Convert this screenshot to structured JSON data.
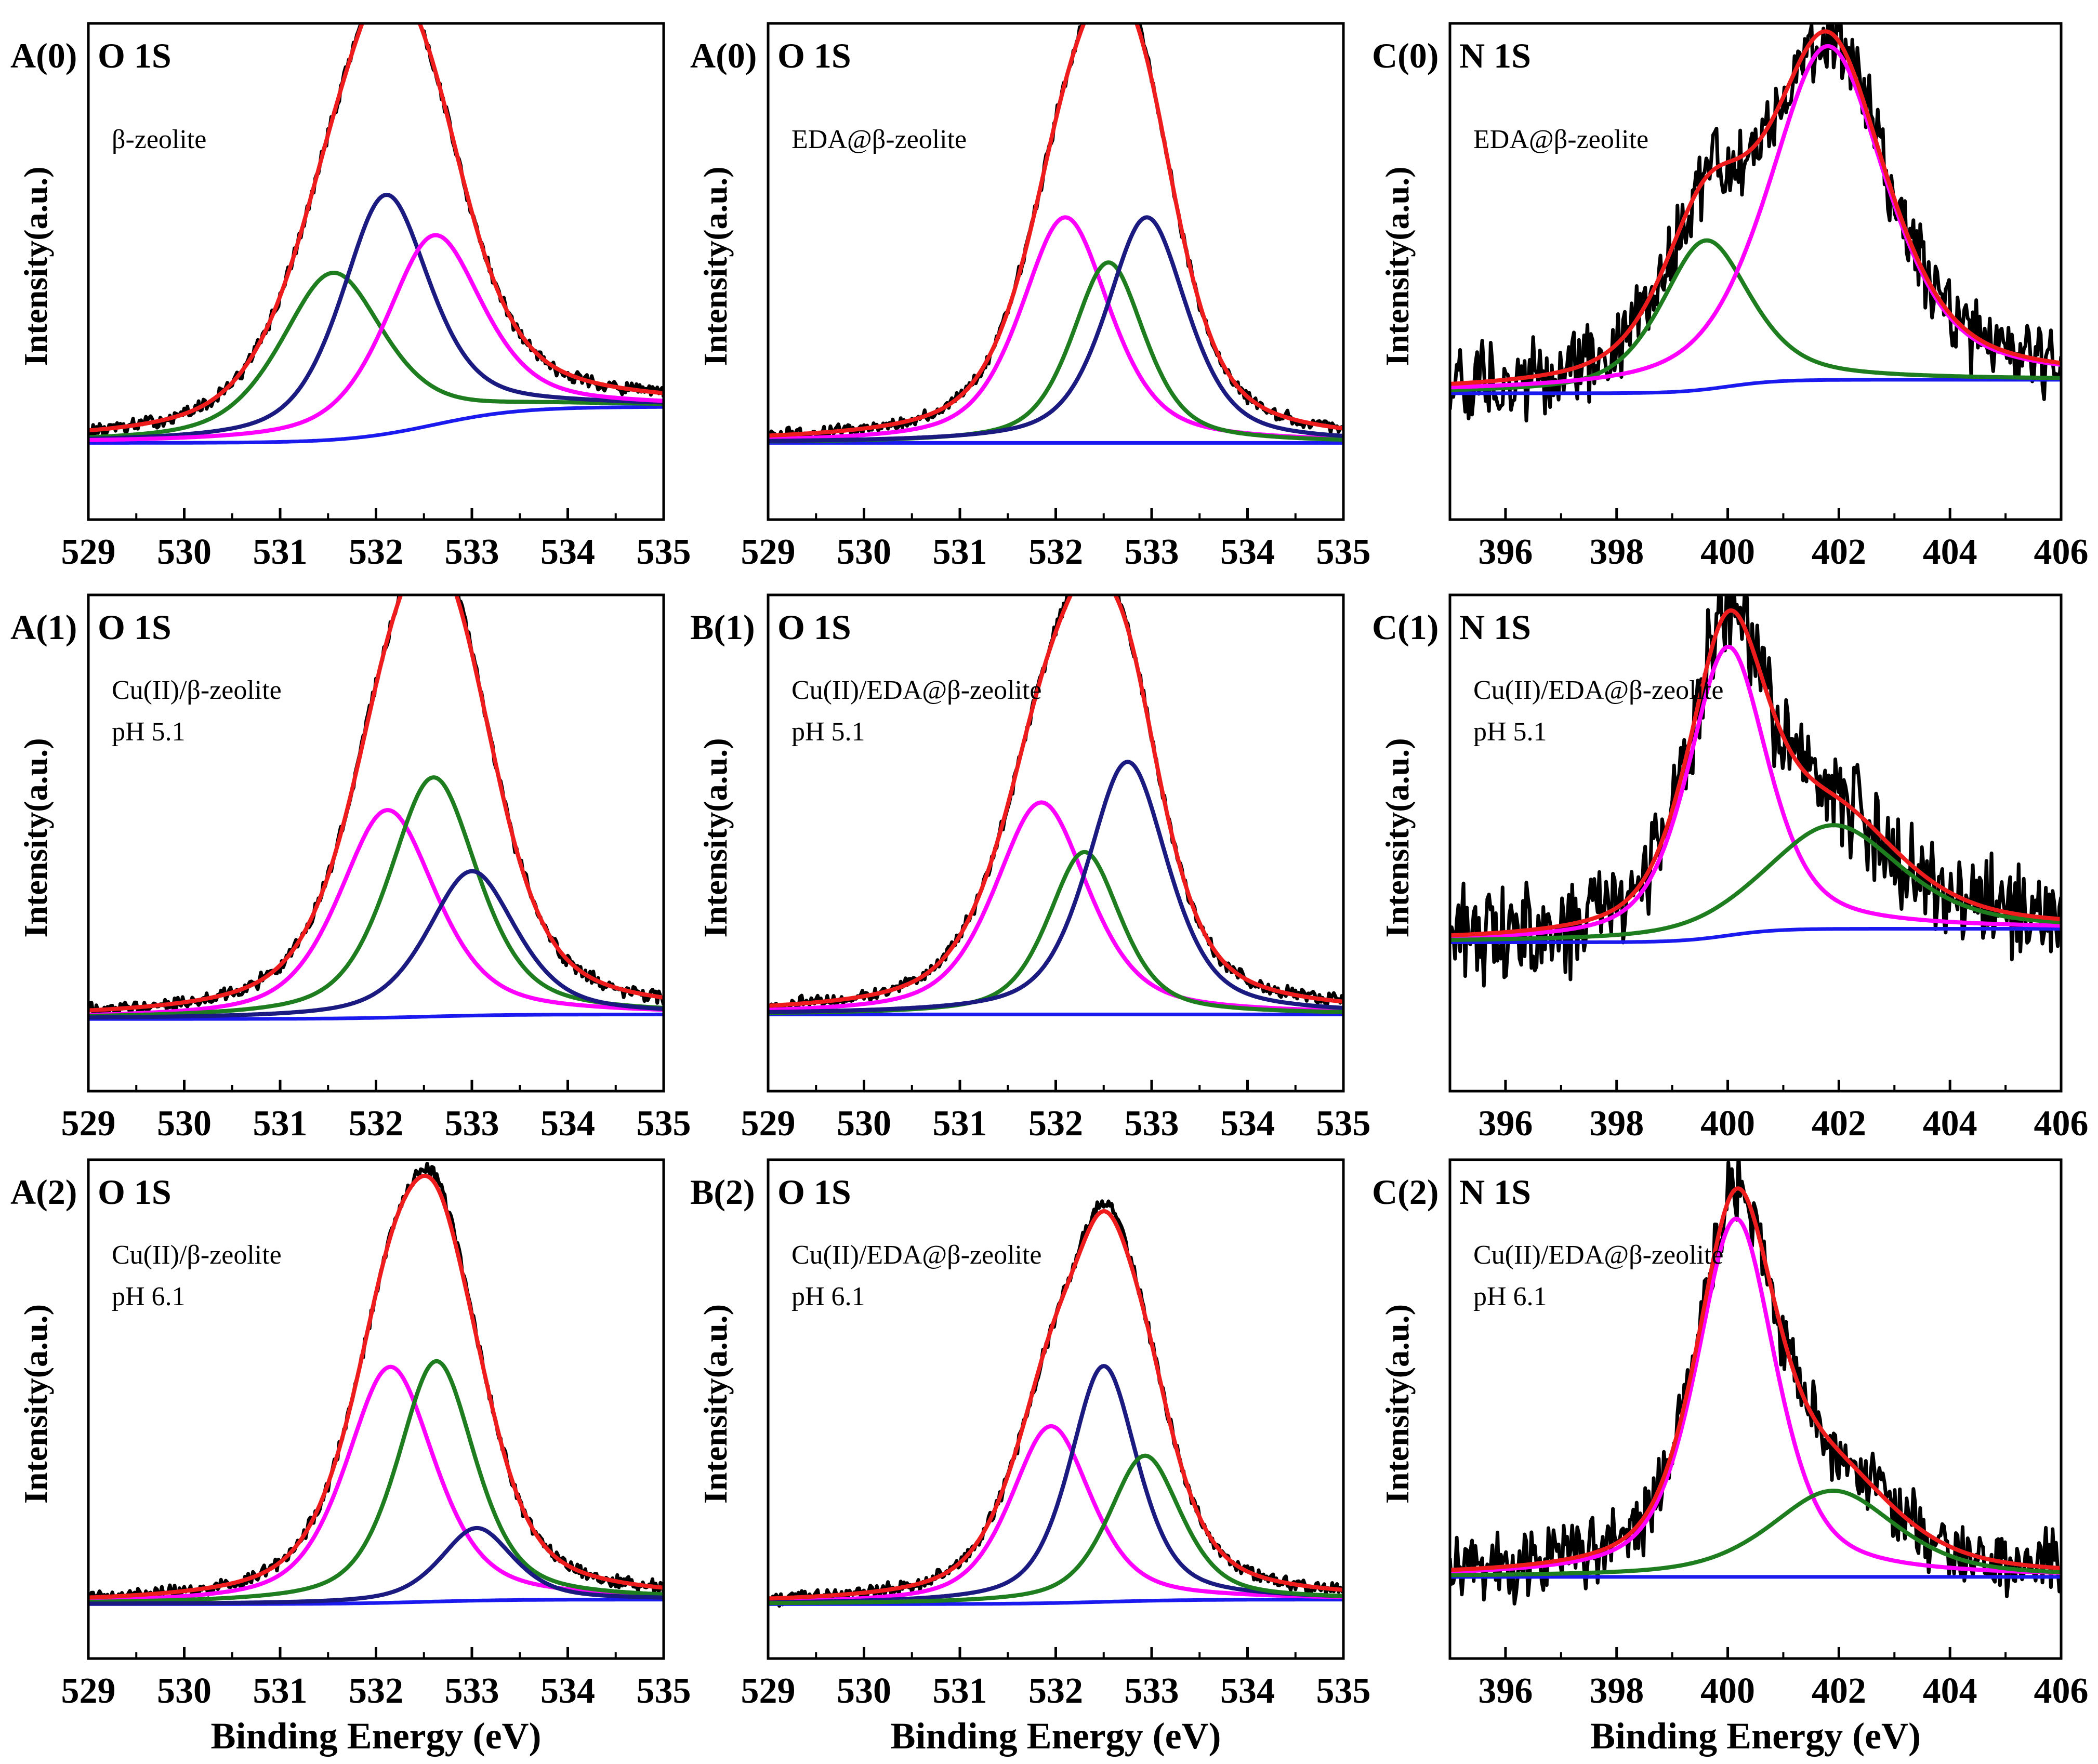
{
  "figure": {
    "xlabel": "Binding Energy (eV)",
    "ylabel": "Intensity(a.u.)",
    "colors": {
      "raw": "#000000",
      "fit": "#ee1c1c",
      "baseline": "#1a1aee",
      "navy": "#1a1a80",
      "magenta": "#ff00ff",
      "green": "#1e7d1e"
    }
  },
  "chart_data": [
    {
      "id": "p00",
      "type": "line",
      "panel_label": "A(0)",
      "title": "O 1S",
      "sample": [
        "β-zeolite"
      ],
      "xlim": [
        529,
        535
      ],
      "ylim": [
        0,
        1.1
      ],
      "xticks": [
        "529",
        "530",
        "531",
        "532",
        "533",
        "534",
        "535"
      ],
      "noise": 0.012,
      "baseline": {
        "start": 0.17,
        "end": 0.25,
        "step_center": 532.6
      },
      "components": [
        {
          "name": "peak 531.5",
          "color": "green",
          "center": 531.55,
          "height": 0.37,
          "width": 0.65
        },
        {
          "name": "peak 532.1",
          "color": "navy",
          "center": 532.1,
          "height": 0.53,
          "width": 0.55
        },
        {
          "name": "peak 532.6",
          "color": "magenta",
          "center": 532.6,
          "height": 0.42,
          "width": 0.6
        }
      ]
    },
    {
      "id": "p01",
      "type": "line",
      "panel_label": "A(0)",
      "title": "O 1S",
      "sample": [
        "EDA@β-zeolite"
      ],
      "xlim": [
        529,
        535
      ],
      "ylim": [
        0,
        1.1
      ],
      "xticks": [
        "529",
        "530",
        "531",
        "532",
        "533",
        "534",
        "535"
      ],
      "noise": 0.012,
      "baseline": {
        "start": 0.17,
        "end": 0.17,
        "step_center": 532.5
      },
      "components": [
        {
          "name": "peak 532.1",
          "color": "magenta",
          "center": 532.1,
          "height": 0.5,
          "width": 0.55
        },
        {
          "name": "peak 532.6",
          "color": "green",
          "center": 532.55,
          "height": 0.4,
          "width": 0.45
        },
        {
          "name": "peak 533.0",
          "color": "navy",
          "center": 532.95,
          "height": 0.5,
          "width": 0.5
        }
      ]
    },
    {
      "id": "p02",
      "type": "line",
      "panel_label": "C(0)",
      "title": "N 1S",
      "sample": [
        "EDA@β-zeolite"
      ],
      "xlim": [
        395,
        406
      ],
      "ylim": [
        0,
        1.1
      ],
      "xticks": [
        "396",
        "398",
        "400",
        "402",
        "404",
        "406"
      ],
      "noise": 0.07,
      "baseline": {
        "start": 0.28,
        "end": 0.31,
        "step_center": 400
      },
      "components": [
        {
          "name": "peak 399.6",
          "color": "green",
          "center": 399.6,
          "height": 0.33,
          "width": 0.95
        },
        {
          "name": "peak 401.8",
          "color": "magenta",
          "center": 401.8,
          "height": 0.74,
          "width": 1.25
        }
      ]
    },
    {
      "id": "p10",
      "type": "line",
      "panel_label": "A(1)",
      "title": "O 1S",
      "sample": [
        "Cu(II)/β-zeolite",
        "pH 5.1"
      ],
      "xlim": [
        529,
        535
      ],
      "ylim": [
        0,
        1.1
      ],
      "xticks": [
        "529",
        "530",
        "531",
        "532",
        "533",
        "534",
        "535"
      ],
      "noise": 0.012,
      "baseline": {
        "start": 0.16,
        "end": 0.17,
        "step_center": 532.5
      },
      "components": [
        {
          "name": "peak 532.1",
          "color": "magenta",
          "center": 532.12,
          "height": 0.46,
          "width": 0.6
        },
        {
          "name": "peak 532.6",
          "color": "green",
          "center": 532.6,
          "height": 0.53,
          "width": 0.55
        },
        {
          "name": "peak 533.0",
          "color": "navy",
          "center": 533.0,
          "height": 0.32,
          "width": 0.55
        }
      ]
    },
    {
      "id": "p11",
      "type": "line",
      "panel_label": "B(1)",
      "title": "O 1S",
      "sample": [
        "Cu(II)/EDA@β-zeolite",
        "pH 5.1"
      ],
      "xlim": [
        529,
        535
      ],
      "ylim": [
        0,
        1.1
      ],
      "xticks": [
        "529",
        "530",
        "531",
        "532",
        "533",
        "534",
        "535"
      ],
      "noise": 0.012,
      "baseline": {
        "start": 0.17,
        "end": 0.17,
        "step_center": 532.5
      },
      "components": [
        {
          "name": "peak 531.8",
          "color": "magenta",
          "center": 531.85,
          "height": 0.47,
          "width": 0.58
        },
        {
          "name": "peak 532.3",
          "color": "green",
          "center": 532.3,
          "height": 0.36,
          "width": 0.45
        },
        {
          "name": "peak 532.7",
          "color": "navy",
          "center": 532.75,
          "height": 0.56,
          "width": 0.5
        }
      ]
    },
    {
      "id": "p12",
      "type": "line",
      "panel_label": "C(1)",
      "title": "N 1S",
      "sample": [
        "Cu(II)/EDA@β-zeolite",
        "pH 5.1"
      ],
      "xlim": [
        395,
        406
      ],
      "ylim": [
        0,
        1.1
      ],
      "xticks": [
        "396",
        "398",
        "400",
        "402",
        "404",
        "406"
      ],
      "noise": 0.085,
      "baseline": {
        "start": 0.33,
        "end": 0.36,
        "step_center": 400
      },
      "components": [
        {
          "name": "peak 400.0",
          "color": "magenta",
          "center": 400.0,
          "height": 0.64,
          "width": 0.85
        },
        {
          "name": "peak 401.9",
          "color": "green",
          "center": 401.9,
          "height": 0.23,
          "width": 1.45
        }
      ]
    },
    {
      "id": "p20",
      "type": "line",
      "panel_label": "A(2)",
      "title": "O 1S",
      "sample": [
        "Cu(II)/β-zeolite",
        "pH 6.1"
      ],
      "xlim": [
        529,
        535
      ],
      "ylim": [
        0,
        1.1
      ],
      "xticks": [
        "529",
        "530",
        "531",
        "532",
        "533",
        "534",
        "535"
      ],
      "noise": 0.012,
      "baseline": {
        "start": 0.12,
        "end": 0.13,
        "step_center": 532.5
      },
      "components": [
        {
          "name": "peak 532.1",
          "color": "magenta",
          "center": 532.15,
          "height": 0.52,
          "width": 0.55
        },
        {
          "name": "peak 532.6",
          "color": "green",
          "center": 532.63,
          "height": 0.53,
          "width": 0.48
        },
        {
          "name": "peak 533.0",
          "color": "navy",
          "center": 533.05,
          "height": 0.16,
          "width": 0.45
        }
      ]
    },
    {
      "id": "p21",
      "type": "line",
      "panel_label": "B(2)",
      "title": "O 1S",
      "sample": [
        "Cu(II)/EDA@β-zeolite",
        "pH 6.1"
      ],
      "xlim": [
        529,
        535
      ],
      "ylim": [
        0,
        1.1
      ],
      "xticks": [
        "529",
        "530",
        "531",
        "532",
        "533",
        "534",
        "535"
      ],
      "noise": 0.012,
      "baseline": {
        "start": 0.12,
        "end": 0.13,
        "step_center": 532.5
      },
      "components": [
        {
          "name": "peak 531.9",
          "color": "magenta",
          "center": 531.95,
          "height": 0.39,
          "width": 0.5
        },
        {
          "name": "peak 532.5",
          "color": "navy",
          "center": 532.5,
          "height": 0.52,
          "width": 0.42
        },
        {
          "name": "peak 532.9",
          "color": "green",
          "center": 532.93,
          "height": 0.32,
          "width": 0.45
        }
      ]
    },
    {
      "id": "p22",
      "type": "line",
      "panel_label": "C(2)",
      "title": "N 1S",
      "sample": [
        "Cu(II)/EDA@β-zeolite",
        "pH 6.1"
      ],
      "xlim": [
        395,
        406
      ],
      "ylim": [
        0,
        1.1
      ],
      "xticks": [
        "396",
        "398",
        "400",
        "402",
        "404",
        "406"
      ],
      "noise": 0.06,
      "baseline": {
        "start": 0.18,
        "end": 0.18,
        "step_center": 400
      },
      "components": [
        {
          "name": "peak 400.2",
          "color": "magenta",
          "center": 400.15,
          "height": 0.79,
          "width": 0.85
        },
        {
          "name": "peak 401.9",
          "color": "green",
          "center": 401.9,
          "height": 0.19,
          "width": 1.35
        }
      ]
    }
  ]
}
